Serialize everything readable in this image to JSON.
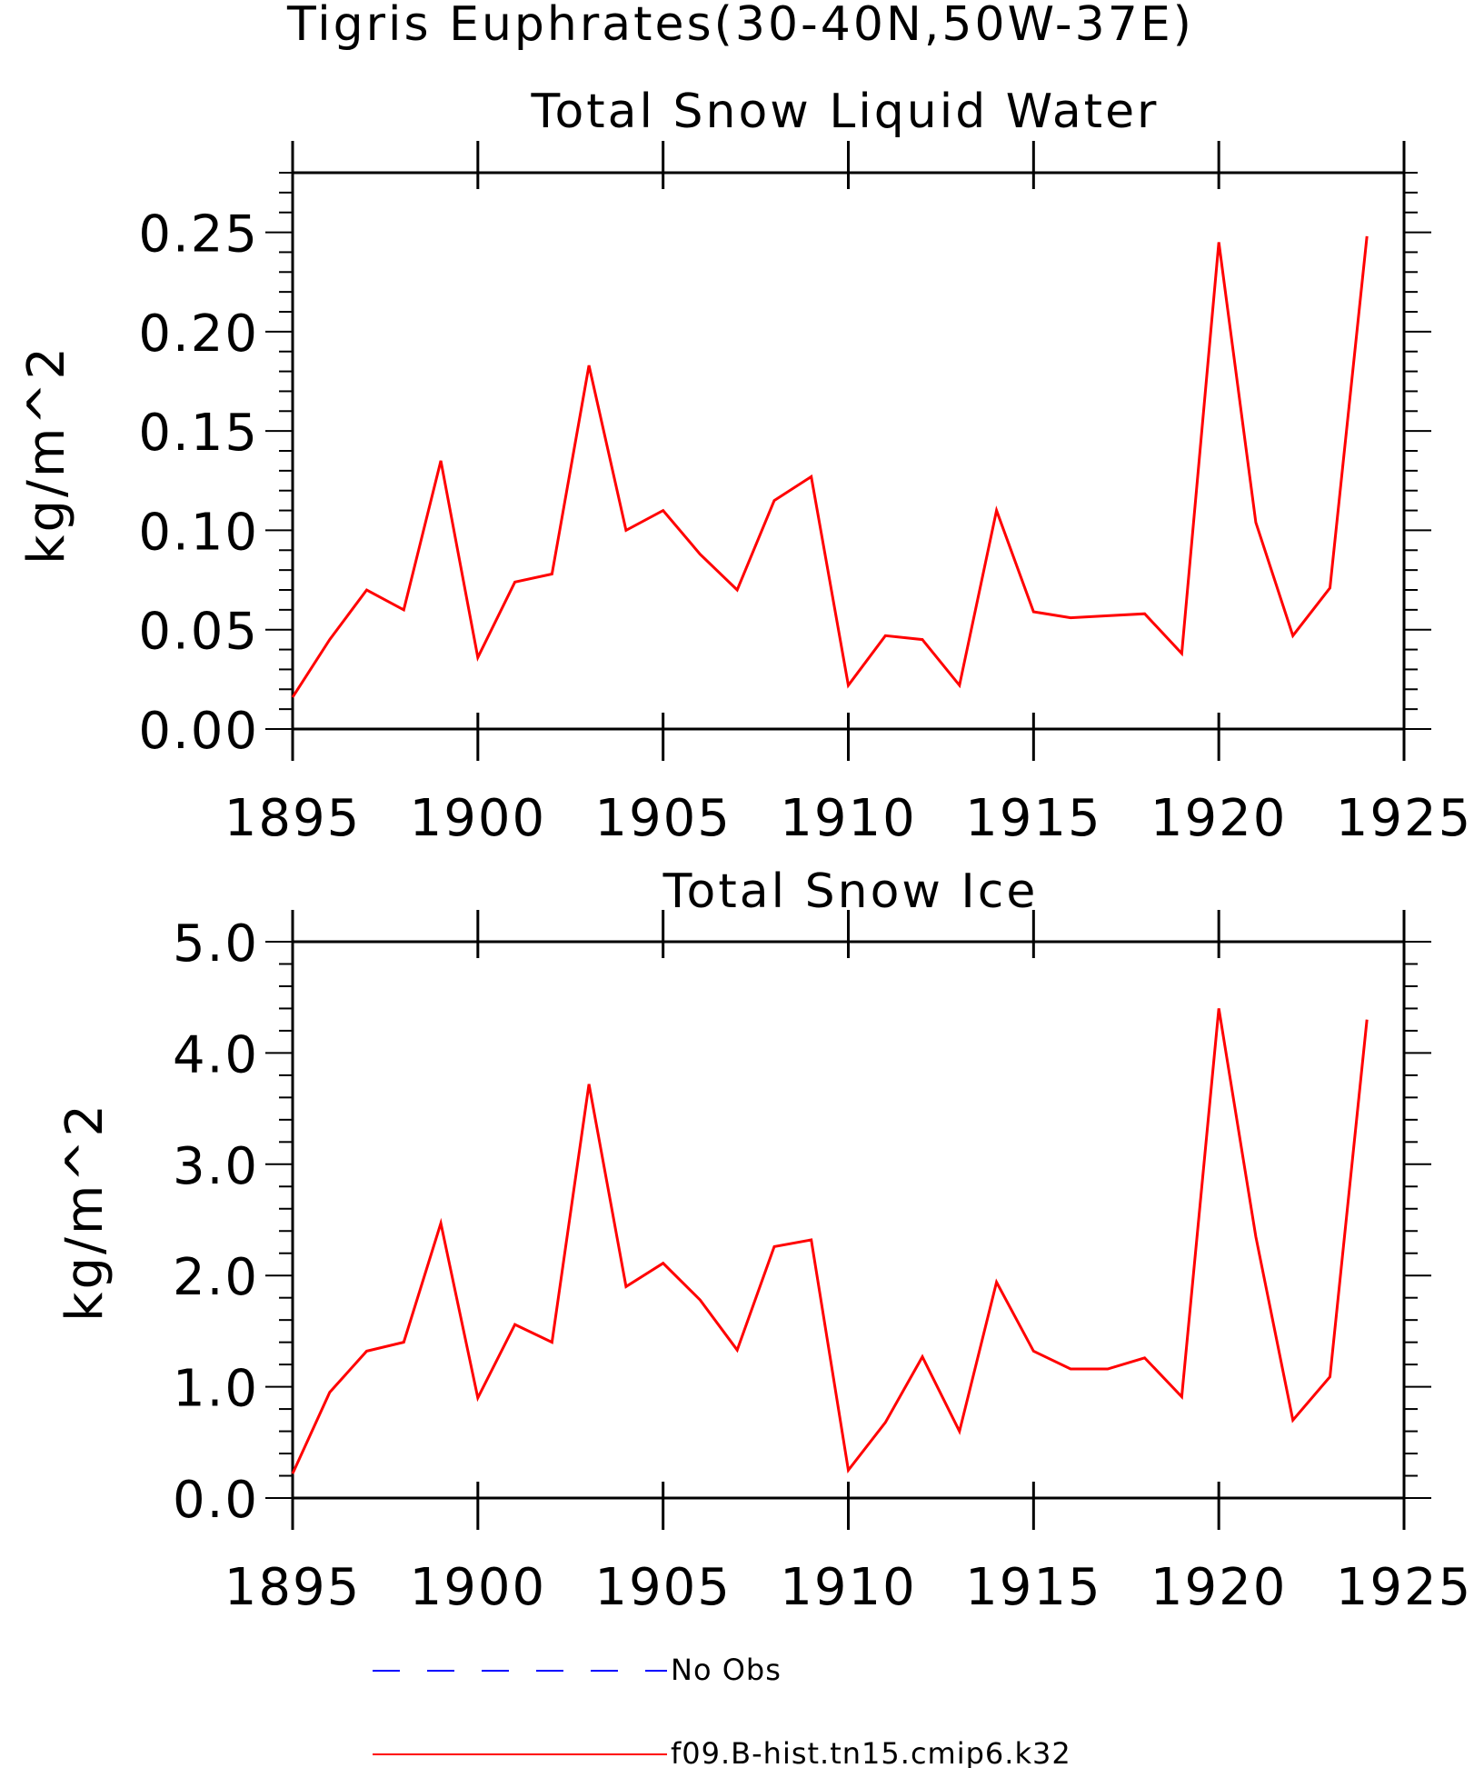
{
  "figure": {
    "title": "Tigris Euphrates(30-40N,50W-37E)",
    "legend": [
      {
        "label": "No Obs",
        "color": "#0000ff",
        "style": "dashed"
      },
      {
        "label": "f09.B-hist.tn15.cmip6.k32",
        "color": "#ff0000",
        "style": "solid"
      }
    ]
  },
  "chart_data": [
    {
      "type": "line",
      "title": "Total Snow Liquid Water",
      "xlabel": "",
      "ylabel": "kg/m^2",
      "xlim": [
        1895,
        1925
      ],
      "ylim": [
        0,
        0.28
      ],
      "xticks": [
        "1895",
        "1900",
        "1905",
        "1910",
        "1915",
        "1920",
        "1925"
      ],
      "yticks": [
        "0.00",
        "0.05",
        "0.10",
        "0.15",
        "0.20",
        "0.25"
      ],
      "series": [
        {
          "name": "f09.B-hist.tn15.cmip6.k32",
          "color": "#ff0000",
          "x": [
            1895,
            1896,
            1897,
            1898,
            1899,
            1900,
            1901,
            1902,
            1903,
            1904,
            1905,
            1906,
            1907,
            1908,
            1909,
            1910,
            1911,
            1912,
            1913,
            1914,
            1915,
            1916,
            1917,
            1918,
            1919,
            1920,
            1921,
            1922,
            1923,
            1924
          ],
          "values": [
            0.016,
            0.045,
            0.07,
            0.06,
            0.135,
            0.036,
            0.074,
            0.078,
            0.183,
            0.1,
            0.11,
            0.088,
            0.07,
            0.115,
            0.127,
            0.022,
            0.047,
            0.045,
            0.022,
            0.11,
            0.059,
            0.056,
            0.057,
            0.058,
            0.038,
            0.245,
            0.104,
            0.047,
            0.071,
            0.248
          ]
        }
      ]
    },
    {
      "type": "line",
      "title": "Total Snow Ice",
      "xlabel": "",
      "ylabel": "kg/m^2",
      "xlim": [
        1895,
        1925
      ],
      "ylim": [
        0,
        5
      ],
      "xticks": [
        "1895",
        "1900",
        "1905",
        "1910",
        "1915",
        "1920",
        "1925"
      ],
      "yticks": [
        "0.0",
        "1.0",
        "2.0",
        "3.0",
        "4.0",
        "5.0"
      ],
      "series": [
        {
          "name": "f09.B-hist.tn15.cmip6.k32",
          "color": "#ff0000",
          "x": [
            1895,
            1896,
            1897,
            1898,
            1899,
            1900,
            1901,
            1902,
            1903,
            1904,
            1905,
            1906,
            1907,
            1908,
            1909,
            1910,
            1911,
            1912,
            1913,
            1914,
            1915,
            1916,
            1917,
            1918,
            1919,
            1920,
            1921,
            1922,
            1923,
            1924
          ],
          "values": [
            0.22,
            0.95,
            1.32,
            1.4,
            2.47,
            0.9,
            1.56,
            1.4,
            3.72,
            1.9,
            2.11,
            1.78,
            1.33,
            2.26,
            2.32,
            0.25,
            0.68,
            1.27,
            0.6,
            1.94,
            1.32,
            1.16,
            1.16,
            1.26,
            0.91,
            4.4,
            2.35,
            0.7,
            1.09,
            4.3
          ]
        }
      ]
    }
  ]
}
